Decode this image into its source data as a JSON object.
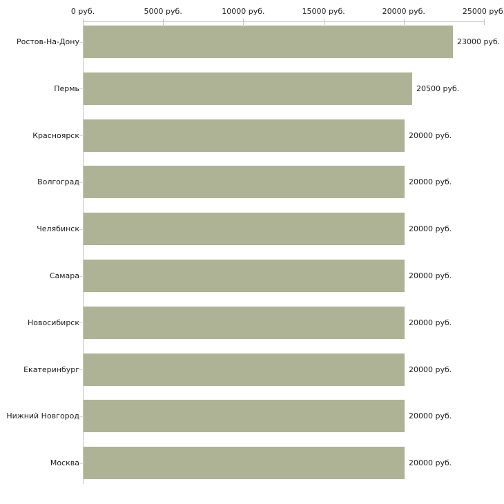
{
  "chart_data": {
    "type": "bar",
    "orientation": "horizontal",
    "title": "",
    "xlabel": "",
    "ylabel": "",
    "unit": "руб.",
    "categories": [
      "Ростов-На-Дону",
      "Пермь",
      "Красноярск",
      "Волгоград",
      "Челябинск",
      "Самара",
      "Новосибирск",
      "Екатеринбург",
      "Нижний Новгород",
      "Москва"
    ],
    "values": [
      23000,
      20500,
      20000,
      20000,
      20000,
      20000,
      20000,
      20000,
      20000,
      20000
    ],
    "value_labels": [
      "23000 руб.",
      "20500 руб.",
      "20000 руб.",
      "20000 руб.",
      "20000 руб.",
      "20000 руб.",
      "20000 руб.",
      "20000 руб.",
      "20000 руб.",
      "20000 руб."
    ],
    "x_ticks": [
      {
        "value": 0,
        "label": "0 руб."
      },
      {
        "value": 5000,
        "label": "5000 руб."
      },
      {
        "value": 10000,
        "label": "10000 руб."
      },
      {
        "value": 15000,
        "label": "15000 руб."
      },
      {
        "value": 20000,
        "label": "20000 руб."
      },
      {
        "value": 25000,
        "label": "25000 руб."
      }
    ],
    "xlim": [
      0,
      25000
    ],
    "grid": false,
    "legend": false,
    "axis_position": "top",
    "colors": {
      "bar": "#aeb396",
      "axis_line": "#c6c6c6",
      "tick_mark": "#c3c6a4",
      "category_tick": "#d8dac4",
      "text": "#1c1c1c",
      "background": "#ffffff"
    }
  }
}
